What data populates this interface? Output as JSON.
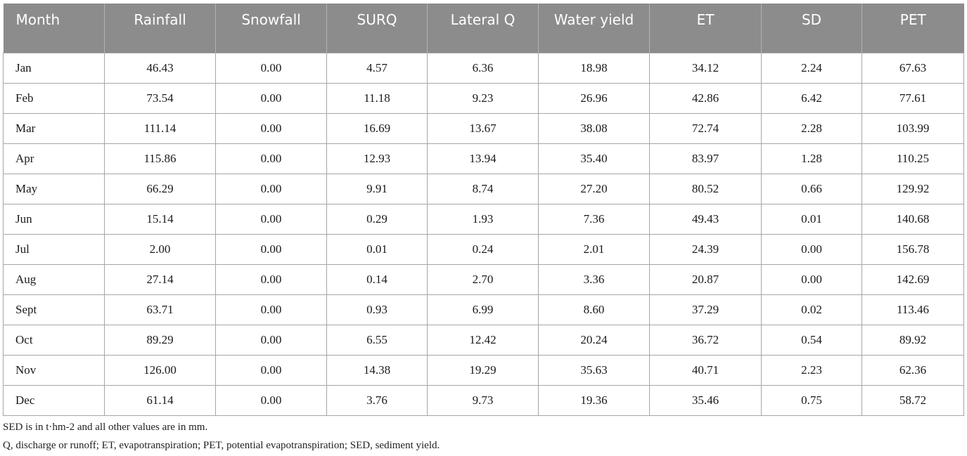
{
  "table": {
    "columns": [
      "Month",
      "Rainfall",
      "Snowfall",
      "SURQ",
      "Lateral Q",
      "Water yield",
      "ET",
      "SD",
      "PET"
    ],
    "rows": [
      [
        "Jan",
        "46.43",
        "0.00",
        "4.57",
        "6.36",
        "18.98",
        "34.12",
        "2.24",
        "67.63"
      ],
      [
        "Feb",
        "73.54",
        "0.00",
        "11.18",
        "9.23",
        "26.96",
        "42.86",
        "6.42",
        "77.61"
      ],
      [
        "Mar",
        "111.14",
        "0.00",
        "16.69",
        "13.67",
        "38.08",
        "72.74",
        "2.28",
        "103.99"
      ],
      [
        "Apr",
        "115.86",
        "0.00",
        "12.93",
        "13.94",
        "35.40",
        "83.97",
        "1.28",
        "110.25"
      ],
      [
        "May",
        "66.29",
        "0.00",
        "9.91",
        "8.74",
        "27.20",
        "80.52",
        "0.66",
        "129.92"
      ],
      [
        "Jun",
        "15.14",
        "0.00",
        "0.29",
        "1.93",
        "7.36",
        "49.43",
        "0.01",
        "140.68"
      ],
      [
        "Jul",
        "2.00",
        "0.00",
        "0.01",
        "0.24",
        "2.01",
        "24.39",
        "0.00",
        "156.78"
      ],
      [
        "Aug",
        "27.14",
        "0.00",
        "0.14",
        "2.70",
        "3.36",
        "20.87",
        "0.00",
        "142.69"
      ],
      [
        "Sept",
        "63.71",
        "0.00",
        "0.93",
        "6.99",
        "8.60",
        "37.29",
        "0.02",
        "113.46"
      ],
      [
        "Oct",
        "89.29",
        "0.00",
        "6.55",
        "12.42",
        "20.24",
        "36.72",
        "0.54",
        "89.92"
      ],
      [
        "Nov",
        "126.00",
        "0.00",
        "14.38",
        "19.29",
        "35.63",
        "40.71",
        "2.23",
        "62.36"
      ],
      [
        "Dec",
        "61.14",
        "0.00",
        "3.76",
        "9.73",
        "19.36",
        "35.46",
        "0.75",
        "58.72"
      ]
    ]
  },
  "footnotes": {
    "units": "SED is in t·hm-2 and all other values are in mm.",
    "abbreviations": "Q, discharge or runoff; ET, evapotranspiration; PET, potential evapotranspiration; SED, sediment yield."
  }
}
